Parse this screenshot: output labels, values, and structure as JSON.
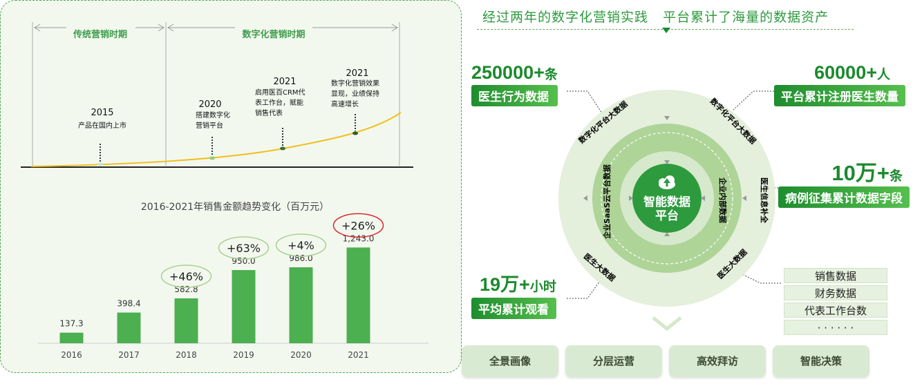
{
  "timeline": {
    "periods": [
      {
        "label": "传统营销时期"
      },
      {
        "label": "数字化营销时期"
      }
    ],
    "events": [
      {
        "year": "2015",
        "desc": [
          "产品在国内上市"
        ]
      },
      {
        "year": "2020",
        "desc": [
          "搭建数字化",
          "营销平台"
        ]
      },
      {
        "year": "2021",
        "desc": [
          "启用医百CRM代",
          "表工作台，赋能",
          "销售代表"
        ]
      },
      {
        "year": "2021",
        "desc": [
          "数字化营销效果",
          "显现，业绩保持",
          "高速增长"
        ]
      }
    ]
  },
  "chart_data": {
    "type": "bar",
    "title": "2016-2021年销售金额趋势变化（百万元）",
    "categories": [
      "2016",
      "2017",
      "2018",
      "2019",
      "2020",
      "2021"
    ],
    "values": [
      137.3,
      398.4,
      582.8,
      950.0,
      986.0,
      1243.0
    ],
    "value_labels": [
      "137.3",
      "398.4",
      "582.8",
      "950.0",
      "986.0",
      "1,243.0"
    ],
    "growth": [
      null,
      null,
      "+46%",
      "+63%",
      "+4%",
      "+26%"
    ],
    "ylim": [
      0,
      1300
    ],
    "colors": {
      "bar": "#4caf50",
      "growth_ring": "#a9cf8f",
      "highlight_ring": "#d9262a"
    }
  },
  "right": {
    "headline": "经过两年的数字化营销实践   平台累计了海量的数据资产",
    "stats": [
      {
        "number": "250000+",
        "unit": "条",
        "label": "医生行为数据"
      },
      {
        "number": "60000+",
        "unit": "人",
        "label": "平台累计注册医生数量"
      },
      {
        "number": "10万+",
        "unit": "条",
        "label": "病例征集累计数据字段"
      },
      {
        "number": "19万+",
        "unit": "小时",
        "label": "平均累计观看"
      }
    ],
    "center": {
      "line1": "智能数据",
      "line2": "平台"
    },
    "ring_outer": [
      "数字化平台大数据",
      "数字化平台大数据",
      "医生信息补全",
      "医生大数据",
      "医生大数据"
    ],
    "ring_inner": [
      "企业SaaS云平台数据",
      "企业内部数据"
    ],
    "data_list": [
      "销售数据",
      "财务数据",
      "代表工作台数",
      "· · · · · ·"
    ],
    "buttons": [
      "全景画像",
      "分层运营",
      "高效拜访",
      "智能决策"
    ],
    "colors": {
      "accent": "#1b8a2d",
      "ring_outer": "#e1eed9",
      "ring_mid": "#aed498",
      "center": "#2e9a3e"
    }
  }
}
